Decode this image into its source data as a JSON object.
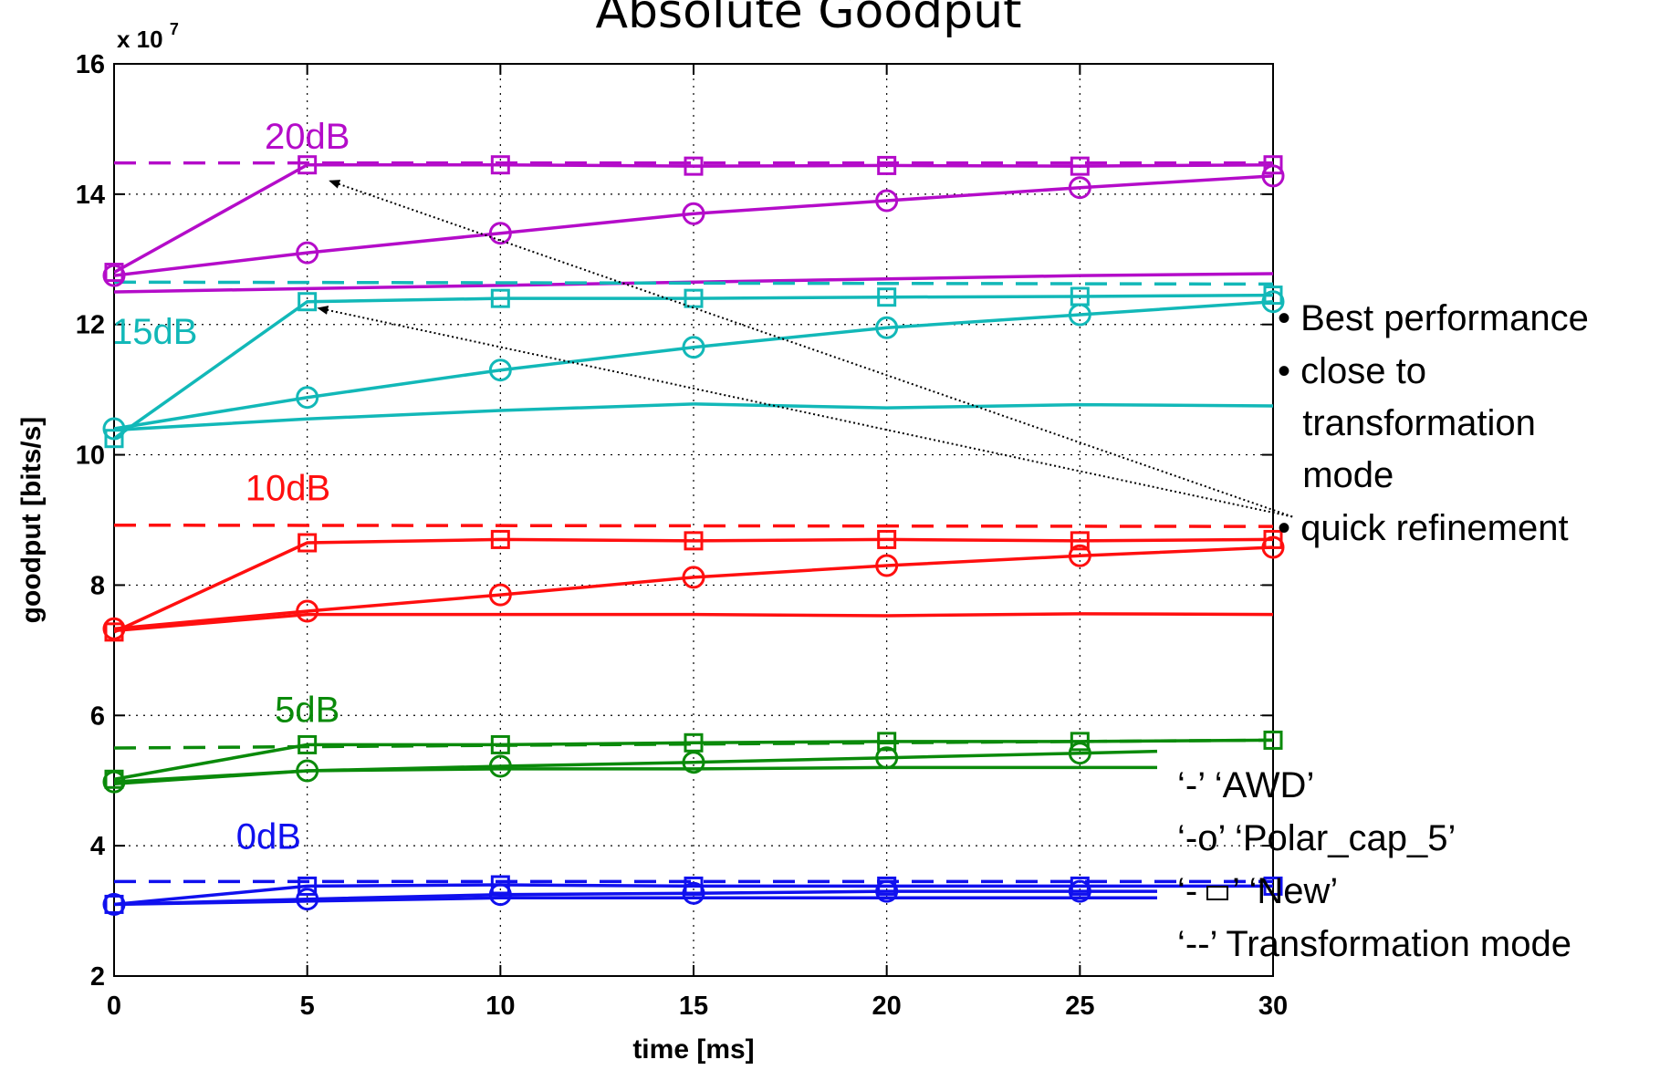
{
  "chart_data": {
    "type": "line",
    "title": "Absolute Goodput",
    "xlabel": "time [ms]",
    "ylabel": "goodput [bits/s]",
    "y_exponent_label": "x 10",
    "y_exponent_power": "7",
    "xlim": [
      0,
      30
    ],
    "ylim": [
      2,
      16
    ],
    "x_ticks": [
      0,
      5,
      10,
      15,
      20,
      25,
      30
    ],
    "y_ticks": [
      2,
      4,
      6,
      8,
      10,
      12,
      14,
      16
    ],
    "x_tick_labels": [
      "0",
      "5",
      "10",
      "15",
      "20",
      "25",
      "30"
    ],
    "y_tick_labels": [
      "2",
      "4",
      "6",
      "8",
      "10",
      "12",
      "14",
      "16"
    ],
    "grid": true,
    "snr_groups": [
      {
        "label": "20dB",
        "color": "#b40cc9",
        "label_at": [
          5,
          14.7
        ],
        "awd": {
          "x": [
            0,
            5,
            10,
            15,
            20,
            25,
            30
          ],
          "y": [
            12.5,
            12.55,
            12.6,
            12.65,
            12.7,
            12.75,
            12.78
          ]
        },
        "polar": {
          "x": [
            0,
            5,
            10,
            15,
            20,
            25,
            30
          ],
          "y": [
            12.75,
            13.1,
            13.4,
            13.7,
            13.9,
            14.1,
            14.28
          ]
        },
        "new": {
          "x": [
            0,
            5,
            10,
            15,
            20,
            25,
            30
          ],
          "y": [
            12.8,
            14.45,
            14.45,
            14.43,
            14.44,
            14.43,
            14.45
          ]
        },
        "transformation": {
          "x": [
            0,
            30
          ],
          "y": [
            14.48,
            14.48
          ]
        }
      },
      {
        "label": "15dB",
        "color": "#12b8b8",
        "label_at": [
          0,
          11.7
        ],
        "awd": {
          "x": [
            0,
            5,
            10,
            15,
            20,
            25,
            30
          ],
          "y": [
            10.38,
            10.55,
            10.68,
            10.78,
            10.72,
            10.77,
            10.75
          ]
        },
        "polar": {
          "x": [
            0,
            5,
            10,
            15,
            20,
            25,
            30
          ],
          "y": [
            10.4,
            10.88,
            11.3,
            11.65,
            11.95,
            12.15,
            12.35
          ]
        },
        "new": {
          "x": [
            0,
            5,
            10,
            15,
            20,
            25,
            30
          ],
          "y": [
            10.25,
            12.35,
            12.4,
            12.4,
            12.42,
            12.43,
            12.45
          ]
        },
        "transformation": {
          "x": [
            0,
            30
          ],
          "y": [
            12.65,
            12.62
          ]
        }
      },
      {
        "label": "10dB",
        "color": "#ff0f0f",
        "label_at": [
          4.5,
          9.3
        ],
        "awd": {
          "x": [
            0,
            5,
            10,
            15,
            20,
            25,
            30
          ],
          "y": [
            7.3,
            7.55,
            7.55,
            7.55,
            7.53,
            7.56,
            7.55
          ]
        },
        "polar": {
          "x": [
            0,
            5,
            10,
            15,
            20,
            25,
            30
          ],
          "y": [
            7.33,
            7.6,
            7.85,
            8.12,
            8.3,
            8.45,
            8.58
          ]
        },
        "new": {
          "x": [
            0,
            5,
            10,
            15,
            20,
            25,
            30
          ],
          "y": [
            7.28,
            8.65,
            8.7,
            8.68,
            8.7,
            8.68,
            8.7
          ]
        },
        "transformation": {
          "x": [
            0,
            30
          ],
          "y": [
            8.92,
            8.9
          ]
        }
      },
      {
        "label": "5dB",
        "color": "#0a8a0a",
        "label_at": [
          5,
          5.9
        ],
        "awd": {
          "x": [
            0,
            5,
            10,
            15,
            20,
            25,
            27
          ],
          "y": [
            4.95,
            5.15,
            5.18,
            5.18,
            5.2,
            5.2,
            5.2
          ]
        },
        "polar": {
          "x": [
            0,
            5,
            10,
            15,
            20,
            25,
            27
          ],
          "y": [
            4.98,
            5.15,
            5.22,
            5.28,
            5.35,
            5.42,
            5.45
          ]
        },
        "new": {
          "x": [
            0,
            5,
            10,
            15,
            20,
            25,
            30
          ],
          "y": [
            5.02,
            5.55,
            5.55,
            5.58,
            5.6,
            5.6,
            5.62
          ]
        },
        "transformation": {
          "x": [
            0,
            30
          ],
          "y": [
            5.5,
            5.62
          ]
        }
      },
      {
        "label": "0dB",
        "color": "#1010ee",
        "label_at": [
          4.0,
          3.95
        ],
        "awd": {
          "x": [
            0,
            5,
            10,
            15,
            20,
            25,
            27
          ],
          "y": [
            3.1,
            3.15,
            3.2,
            3.2,
            3.2,
            3.2,
            3.2
          ]
        },
        "polar": {
          "x": [
            0,
            5,
            10,
            15,
            20,
            25,
            27
          ],
          "y": [
            3.1,
            3.18,
            3.25,
            3.27,
            3.3,
            3.3,
            3.3
          ]
        },
        "new": {
          "x": [
            0,
            5,
            10,
            15,
            20,
            25,
            30
          ],
          "y": [
            3.1,
            3.38,
            3.4,
            3.38,
            3.38,
            3.38,
            3.38
          ]
        },
        "transformation": {
          "x": [
            0,
            30
          ],
          "y": [
            3.45,
            3.45
          ]
        }
      }
    ],
    "annotations": [
      "• Best performance",
      "• close to",
      "  transformation",
      "  mode",
      "• quick refinement"
    ],
    "arrows": [
      {
        "from": [
          30.5,
          9.05
        ],
        "to": [
          5.6,
          14.2
        ]
      },
      {
        "from": [
          30.5,
          9.05
        ],
        "to": [
          5.3,
          12.25
        ]
      }
    ],
    "legend": [
      "‘-’  ‘AWD’",
      "‘-o’ ‘Polar_cap_5’",
      "‘-",
      "’ ‘New’",
      "‘--’ Transformation mode"
    ]
  }
}
